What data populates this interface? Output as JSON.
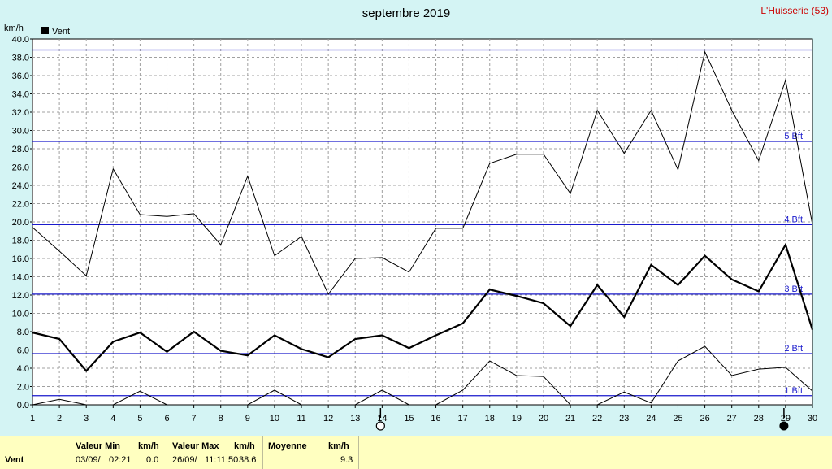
{
  "title": "septembre 2019",
  "station": "L'Huisserie (53)",
  "unit": "km/h",
  "legend": "Vent",
  "colors": {
    "background": "#d4f4f4",
    "plot": "#ffffff",
    "series": "#000000",
    "beaufort": "#1a1acc",
    "footer": "#ffffc0",
    "station": "#cc0000"
  },
  "chart_data": {
    "type": "line",
    "x": [
      1,
      2,
      3,
      4,
      5,
      6,
      7,
      8,
      9,
      10,
      11,
      12,
      13,
      14,
      15,
      16,
      17,
      18,
      19,
      20,
      21,
      22,
      23,
      24,
      25,
      26,
      27,
      28,
      29,
      30
    ],
    "xlim": [
      1,
      30
    ],
    "ylim": [
      0,
      40
    ],
    "yticks": [
      "0.0",
      "2.0",
      "4.0",
      "6.0",
      "8.0",
      "10.0",
      "12.0",
      "14.0",
      "16.0",
      "18.0",
      "20.0",
      "22.0",
      "24.0",
      "26.0",
      "28.0",
      "30.0",
      "32.0",
      "34.0",
      "36.0",
      "38.0",
      "40.0"
    ],
    "xticks": [
      "1",
      "2",
      "3",
      "4",
      "5",
      "6",
      "7",
      "8",
      "9",
      "10",
      "11",
      "12",
      "13",
      "14",
      "15",
      "16",
      "17",
      "18",
      "19",
      "20",
      "21",
      "22",
      "23",
      "24",
      "25",
      "26",
      "27",
      "28",
      "29",
      "30"
    ],
    "grid": true,
    "legend_position": "top-left",
    "series": [
      {
        "name": "Vent",
        "role": "max",
        "values": [
          19.4,
          16.8,
          14.1,
          25.8,
          20.8,
          20.6,
          20.9,
          17.5,
          25.0,
          16.3,
          18.4,
          12.1,
          16.0,
          16.1,
          14.5,
          19.3,
          19.3,
          26.4,
          27.4,
          27.4,
          23.1,
          32.2,
          27.5,
          32.2,
          25.7,
          38.6,
          32.2,
          26.7,
          35.5,
          19.7
        ]
      },
      {
        "name": "Vent",
        "role": "mean",
        "values": [
          7.9,
          7.2,
          3.7,
          6.9,
          7.9,
          5.8,
          8.0,
          5.9,
          5.4,
          7.6,
          6.1,
          5.2,
          7.2,
          7.6,
          6.2,
          7.6,
          8.9,
          12.6,
          11.9,
          11.1,
          8.6,
          13.1,
          9.6,
          15.3,
          13.1,
          16.3,
          13.7,
          12.4,
          17.5,
          8.2
        ]
      },
      {
        "name": "Vent",
        "role": "min",
        "values": [
          0.0,
          0.6,
          0.0,
          0.0,
          1.5,
          0.0,
          0.0,
          0.0,
          0.0,
          1.6,
          0.0,
          0.0,
          0.0,
          1.6,
          0.0,
          0.0,
          1.6,
          4.8,
          3.2,
          3.1,
          0.0,
          0.0,
          1.4,
          0.2,
          4.8,
          6.4,
          3.2,
          3.9,
          4.1,
          1.5
        ]
      }
    ],
    "beaufort": [
      {
        "value": 1,
        "label": "1 Bft"
      },
      {
        "value": 5.6,
        "label": "2 Bft"
      },
      {
        "value": 12.1,
        "label": "3 Bft"
      },
      {
        "value": 19.7,
        "label": "4 Bft"
      },
      {
        "value": 28.8,
        "label": "5 Bft"
      },
      {
        "value": 38.8,
        "label": ""
      }
    ],
    "moon_phases": [
      {
        "day": 14,
        "phase": "full"
      },
      {
        "day": 29,
        "phase": "new"
      }
    ]
  },
  "footer": {
    "name": "Vent",
    "min_header": "Valeur Min",
    "min_unit": "km/h",
    "min_date": "03/09/",
    "min_time": "02:21",
    "min_value": "0.0",
    "max_header": "Valeur Max",
    "max_unit": "km/h",
    "max_date": "26/09/",
    "max_time": "11:11:50",
    "max_value": "38.6",
    "avg_header": "Moyenne",
    "avg_unit": "km/h",
    "avg_value": "9.3"
  }
}
